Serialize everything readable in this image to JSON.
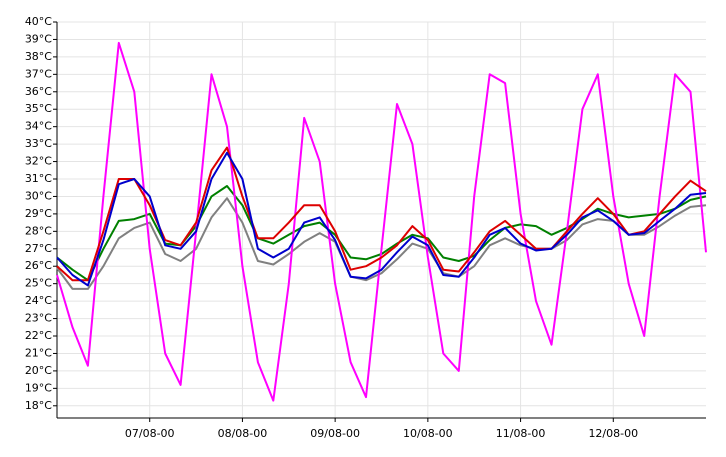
{
  "chart_data": {
    "type": "line",
    "x": [
      0,
      4,
      8,
      12,
      16,
      20,
      24,
      28,
      32,
      36,
      40,
      44,
      48,
      52,
      56,
      60,
      64,
      68,
      72,
      76,
      80,
      84,
      88,
      92,
      96,
      100,
      104,
      108,
      112,
      116,
      120,
      124,
      128,
      132,
      136,
      140,
      144,
      148,
      152,
      156,
      160,
      164,
      168
    ],
    "xlim": [
      0,
      168
    ],
    "xticks": [
      {
        "value": 24,
        "label": "07/08-00"
      },
      {
        "value": 48,
        "label": "08/08-00"
      },
      {
        "value": 72,
        "label": "09/08-00"
      },
      {
        "value": 96,
        "label": "10/08-00"
      },
      {
        "value": 120,
        "label": "11/08-00"
      },
      {
        "value": 144,
        "label": "12/08-00"
      }
    ],
    "ylim": [
      17.3,
      40
    ],
    "yticks": [
      {
        "value": 18,
        "label": "18°C"
      },
      {
        "value": 19,
        "label": "19°C"
      },
      {
        "value": 20,
        "label": "20°C"
      },
      {
        "value": 21,
        "label": "21°C"
      },
      {
        "value": 22,
        "label": "22°C"
      },
      {
        "value": 23,
        "label": "23°C"
      },
      {
        "value": 24,
        "label": "24°C"
      },
      {
        "value": 25,
        "label": "25°C"
      },
      {
        "value": 26,
        "label": "26°C"
      },
      {
        "value": 27,
        "label": "27°C"
      },
      {
        "value": 28,
        "label": "28°C"
      },
      {
        "value": 29,
        "label": "29°C"
      },
      {
        "value": 30,
        "label": "30°C"
      },
      {
        "value": 31,
        "label": "31°C"
      },
      {
        "value": 32,
        "label": "32°C"
      },
      {
        "value": 33,
        "label": "33°C"
      },
      {
        "value": 34,
        "label": "34°C"
      },
      {
        "value": 35,
        "label": "35°C"
      },
      {
        "value": 36,
        "label": "36°C"
      },
      {
        "value": 37,
        "label": "37°C"
      },
      {
        "value": 38,
        "label": "38°C"
      },
      {
        "value": 39,
        "label": "39°C"
      },
      {
        "value": 40,
        "label": "40°C"
      }
    ],
    "grid": true,
    "series": [
      {
        "color": "#808080",
        "values": [
          25.9,
          24.7,
          24.7,
          26,
          27.6,
          28.2,
          28.5,
          26.7,
          26.3,
          27,
          28.8,
          29.9,
          28.5,
          26.3,
          26.1,
          26.7,
          27.4,
          27.9,
          27.4,
          25.4,
          25.2,
          25.6,
          26.4,
          27.3,
          27,
          25.6,
          25.4,
          26,
          27.2,
          27.6,
          27.2,
          27,
          27,
          27.5,
          28.4,
          28.7,
          28.6,
          27.8,
          27.8,
          28.3,
          28.9,
          29.4,
          29.5
        ]
      },
      {
        "color": "#008000",
        "values": [
          26.5,
          25.8,
          25.2,
          27,
          28.6,
          28.7,
          29,
          27.3,
          27.2,
          28.3,
          30,
          30.6,
          29.5,
          27.6,
          27.3,
          27.8,
          28.3,
          28.5,
          27.8,
          26.5,
          26.4,
          26.7,
          27.3,
          27.8,
          27.6,
          26.5,
          26.3,
          26.6,
          27.5,
          28.2,
          28.4,
          28.3,
          27.8,
          28.2,
          28.7,
          29.3,
          29,
          28.8,
          28.9,
          29,
          29.3,
          29.8,
          30
        ]
      },
      {
        "color": "#ff00ff",
        "values": [
          25.5,
          22.5,
          20.3,
          30,
          38.8,
          36,
          27,
          21,
          19.2,
          28,
          37,
          34,
          26,
          20.5,
          18.3,
          25,
          34.5,
          32,
          25,
          20.5,
          18.5,
          27,
          35.3,
          33,
          26.5,
          21,
          20,
          30,
          37,
          36.5,
          29,
          24,
          21.5,
          28,
          35,
          37,
          30,
          25,
          22,
          30,
          37,
          36,
          26.8
        ]
      },
      {
        "color": "#dd0000",
        "values": [
          26,
          25.2,
          25.2,
          28,
          31,
          31,
          29.5,
          27.5,
          27.2,
          28.5,
          31.5,
          32.8,
          30,
          27.6,
          27.6,
          28.5,
          29.5,
          29.5,
          28,
          25.8,
          26,
          26.5,
          27.2,
          28.3,
          27.5,
          25.8,
          25.7,
          26.8,
          28,
          28.6,
          27.8,
          27,
          27,
          28,
          29,
          29.9,
          29,
          27.8,
          28,
          29,
          30,
          30.9,
          30.3
        ]
      },
      {
        "color": "#0000cc",
        "values": [
          26.5,
          25.5,
          24.9,
          27.5,
          30.7,
          31,
          30,
          27.2,
          27,
          28,
          31,
          32.5,
          31,
          27,
          26.5,
          27,
          28.5,
          28.8,
          27.5,
          25.4,
          25.3,
          25.8,
          26.8,
          27.7,
          27.2,
          25.5,
          25.4,
          26.5,
          27.8,
          28.2,
          27.3,
          26.9,
          27,
          27.8,
          28.8,
          29.2,
          28.6,
          27.8,
          27.9,
          28.6,
          29.3,
          30.1,
          30.2
        ]
      }
    ]
  }
}
